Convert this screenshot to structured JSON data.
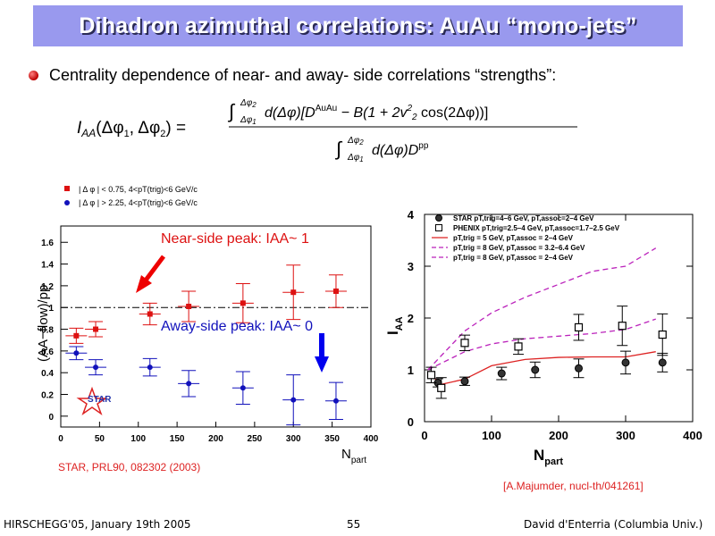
{
  "slide": {
    "title": "Dihadron azimuthal correlations: AuAu “mono-jets”",
    "bullet": "Centrality dependence of near- and away- side correlations “strengths”:",
    "formula": "I_AA(Δφ1, Δφ2) = ∫ d(Δφ)[D^AuAu − B(1 + 2v2² cos(2Δφ))] / ∫ d(Δφ) D^pp",
    "footer_left": "HIRSCHEGG'05, January 19th 2005",
    "footer_center": "55",
    "footer_right": "David d'Enterria (Columbia Univ.)"
  },
  "left_plot": {
    "legend": [
      "| Δ φ | < 0.75, 4<pT(trig)<6 GeV/c",
      "| Δ φ | > 2.25, 4<pT(trig)<6 GeV/c"
    ],
    "near_label": "Near-side peak: IAA~ 1",
    "away_label": "Away-side peak: IAA~ 0",
    "star_logo": "STAR",
    "reference": "STAR, PRL90, 082302 (2003)"
  },
  "right_plot": {
    "legend": [
      "STAR pT,trig=4–6 GeV, pT,assoc=2–4 GeV",
      "PHENIX pT,trig=2.5–4 GeV, pT,assoc=1.7–2.5 GeV",
      "pT,trig = 5 GeV, pT,assoc = 2–4 GeV",
      "pT,trig = 8 GeV, pT,assoc = 3.2–6.4 GeV",
      "pT,trig = 8 GeV, pT,assoc = 2–4 GeV"
    ],
    "reference": "[A.Majumder, nucl-th/041261]"
  },
  "chart_data": [
    {
      "type": "scatter",
      "xlabel": "Npart",
      "ylabel": "(AA−flow)/pp",
      "xlim": [
        0,
        400
      ],
      "ylim": [
        -0.1,
        1.75
      ],
      "xticks": [
        0,
        50,
        100,
        150,
        200,
        250,
        300,
        350,
        400
      ],
      "yticks": [
        0,
        0.2,
        0.4,
        0.6,
        0.8,
        1,
        1.2,
        1.4,
        1.6
      ],
      "reference_line": 1,
      "series": [
        {
          "name": "| Δ φ | < 0.75, 4<pT(trig)<6 GeV/c",
          "color": "#dd1111",
          "marker": "square",
          "x": [
            20,
            45,
            115,
            165,
            235,
            300,
            355
          ],
          "y": [
            0.74,
            0.8,
            0.94,
            1.01,
            1.04,
            1.14,
            1.15
          ],
          "err": [
            0.07,
            0.07,
            0.1,
            0.14,
            0.18,
            0.25,
            0.15
          ]
        },
        {
          "name": "| Δ φ | > 2.25, 4<pT(trig)<6 GeV/c",
          "color": "#1111bb",
          "marker": "circle",
          "x": [
            20,
            45,
            115,
            165,
            235,
            300,
            355
          ],
          "y": [
            0.58,
            0.45,
            0.45,
            0.3,
            0.26,
            0.15,
            0.14
          ],
          "err": [
            0.06,
            0.07,
            0.08,
            0.12,
            0.15,
            0.23,
            0.17
          ]
        }
      ]
    },
    {
      "type": "line",
      "xlabel": "Npart",
      "ylabel": "IAA",
      "xlim": [
        0,
        400
      ],
      "ylim": [
        0,
        4
      ],
      "xticks": [
        0,
        100,
        200,
        300,
        400
      ],
      "yticks": [
        0,
        1,
        2,
        3,
        4
      ],
      "series": [
        {
          "name": "STAR pT,trig=4–6 GeV, pT,assoc=2–4 GeV",
          "marker": "filled-circle",
          "x": [
            20,
            60,
            115,
            165,
            230,
            300,
            355
          ],
          "y": [
            0.75,
            0.78,
            0.93,
            1.0,
            1.03,
            1.14,
            1.14
          ],
          "err": [
            0.08,
            0.08,
            0.12,
            0.15,
            0.18,
            0.22,
            0.18
          ]
        },
        {
          "name": "PHENIX pT,trig=2.5–4 GeV, pT,assoc=1.7–2.5 GeV",
          "marker": "open-square",
          "x": [
            10,
            25,
            60,
            140,
            230,
            295,
            355
          ],
          "y": [
            0.9,
            0.65,
            1.52,
            1.45,
            1.82,
            1.85,
            1.68
          ],
          "err": [
            0.15,
            0.2,
            0.15,
            0.15,
            0.25,
            0.38,
            0.4
          ]
        },
        {
          "name": "pT,trig = 5 GeV, pT,assoc = 2–4 GeV",
          "color": "#dd2222",
          "dash": "solid",
          "x": [
            5,
            25,
            60,
            100,
            150,
            200,
            250,
            300,
            345
          ],
          "y": [
            0.95,
            0.72,
            0.82,
            1.08,
            1.2,
            1.24,
            1.25,
            1.25,
            1.35
          ]
        },
        {
          "name": "pT,trig = 8 GeV, pT,assoc = 3.2–6.4 GeV",
          "color": "#bb22bb",
          "dash": "dashed",
          "x": [
            5,
            60,
            100,
            150,
            200,
            250,
            300,
            345
          ],
          "y": [
            1.0,
            1.35,
            1.5,
            1.6,
            1.65,
            1.7,
            1.78,
            1.98
          ]
        },
        {
          "name": "pT,trig = 8 GeV, pT,assoc = 2–4 GeV",
          "color": "#bb22bb",
          "dash": "dashed",
          "x": [
            5,
            60,
            100,
            150,
            200,
            250,
            300,
            345
          ],
          "y": [
            1.0,
            1.75,
            2.1,
            2.4,
            2.65,
            2.9,
            3.0,
            3.35
          ]
        }
      ]
    }
  ]
}
